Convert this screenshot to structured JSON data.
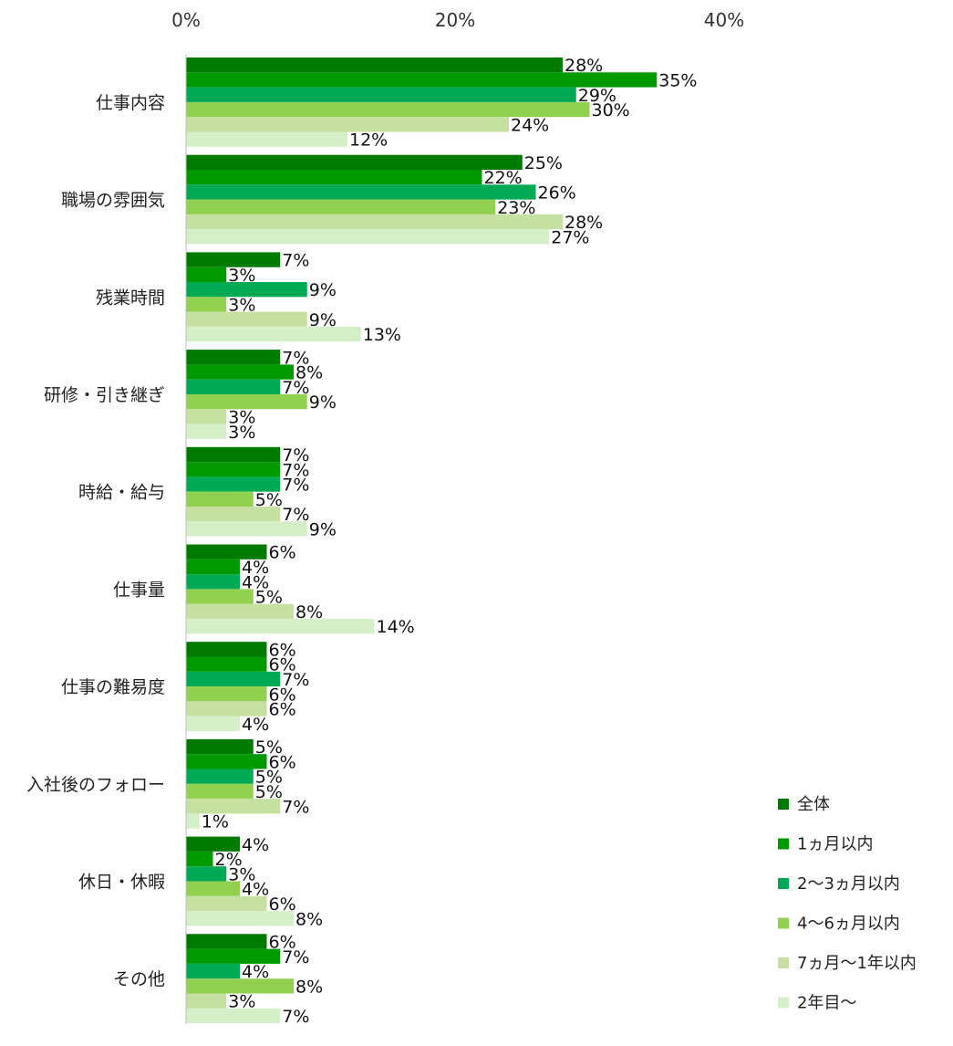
{
  "chart_data": {
    "type": "bar",
    "orientation": "horizontal",
    "title": "",
    "xlabel": "",
    "ylabel": "",
    "xlim": [
      0,
      40
    ],
    "xticks": [
      "0%",
      "20%",
      "40%"
    ],
    "grid": false,
    "legend_position": "bottom-right",
    "categories": [
      "仕事内容",
      "職場の雰囲気",
      "残業時間",
      "研修・引き継ぎ",
      "時給・給与",
      "仕事量",
      "仕事の難易度",
      "入社後のフォロー",
      "休日・休暇",
      "その他"
    ],
    "series": [
      {
        "name": "全体",
        "color": "#007a00",
        "values": [
          28,
          25,
          7,
          7,
          7,
          6,
          6,
          5,
          4,
          6
        ]
      },
      {
        "name": "1ヵ月以内",
        "color": "#009900",
        "values": [
          35,
          22,
          3,
          8,
          7,
          4,
          6,
          6,
          2,
          7
        ]
      },
      {
        "name": "2〜3ヵ月以内",
        "color": "#00aa55",
        "values": [
          29,
          26,
          9,
          7,
          7,
          4,
          7,
          5,
          3,
          4
        ]
      },
      {
        "name": "4〜6ヵ月以内",
        "color": "#92d050",
        "values": [
          30,
          23,
          3,
          9,
          5,
          5,
          6,
          5,
          4,
          8
        ]
      },
      {
        "name": "7ヵ月〜1年以内",
        "color": "#c5e0a0",
        "values": [
          24,
          28,
          9,
          3,
          7,
          8,
          6,
          7,
          6,
          3
        ]
      },
      {
        "name": "2年目〜",
        "color": "#d5f0c8",
        "values": [
          12,
          27,
          13,
          3,
          9,
          14,
          4,
          1,
          8,
          7
        ]
      }
    ]
  }
}
